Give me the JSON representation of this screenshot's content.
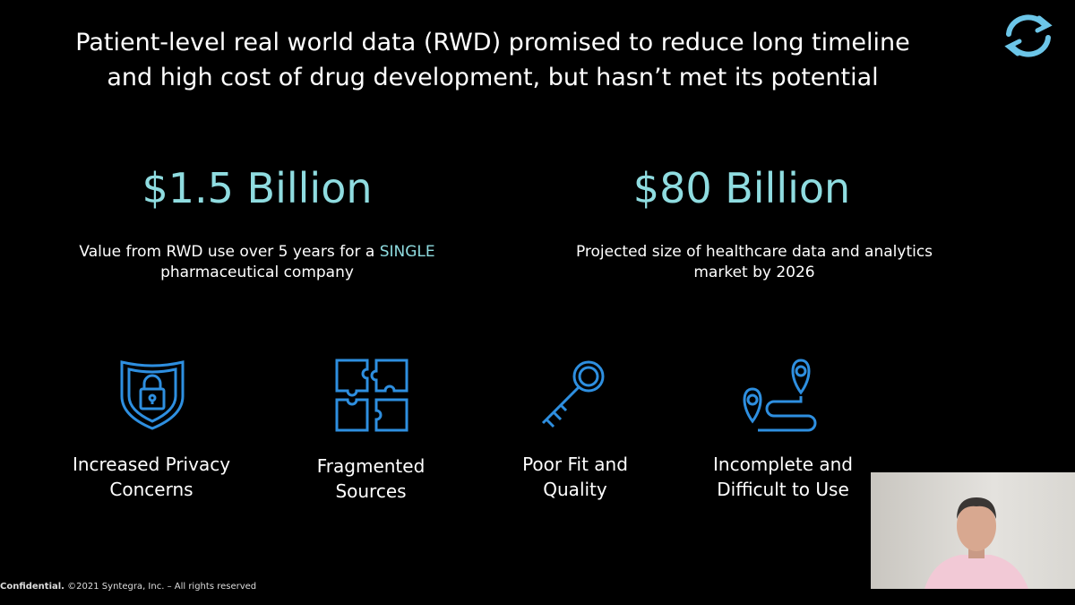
{
  "header": {
    "title_lines": [
      "Patient-level real world data (RWD) promised to reduce long timeline",
      "and high cost of drug development, but hasn’t met its potential"
    ]
  },
  "stats": [
    {
      "value": "$1.5 Billion",
      "description": [
        "Value from RWD use over 5 years for a",
        "SINGLE",
        "pharmaceutical company"
      ]
    },
    {
      "value": "$80 Billion",
      "description": [
        "Projected size of healthcare data and analytics",
        "market by 2026"
      ]
    }
  ],
  "issues": [
    {
      "label": [
        "Increased Privacy",
        "Concerns"
      ]
    },
    {
      "label": [
        "Fragmented",
        "Sources"
      ]
    },
    {
      "label": [
        "Poor Fit and",
        "Quality"
      ]
    },
    {
      "label": [
        "Incomplete and",
        "Difficult to Use"
      ]
    }
  ],
  "footer": {
    "bold": "Confidential.",
    "text": "©2021 Syntegra, Inc. – All rights reserved"
  }
}
